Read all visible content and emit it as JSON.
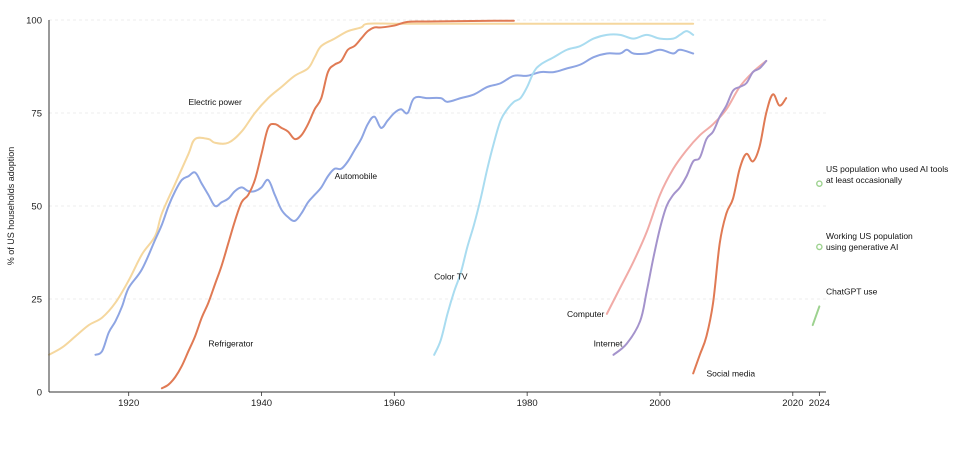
{
  "chart_data": {
    "type": "line",
    "ylabel": "% of US households adoption",
    "xlim": [
      1908,
      2025
    ],
    "ylim": [
      0,
      100
    ],
    "x_ticks": [
      {
        "value": 1920,
        "label": "1920"
      },
      {
        "value": 1940,
        "label": "1940"
      },
      {
        "value": 1960,
        "label": "1960"
      },
      {
        "value": 1980,
        "label": "1980"
      },
      {
        "value": 2000,
        "label": "2000"
      },
      {
        "value": 2020,
        "label": "2020"
      },
      {
        "value": 2024,
        "label": "2024"
      }
    ],
    "y_ticks": [
      {
        "value": 0,
        "label": "0"
      },
      {
        "value": 25,
        "label": "25"
      },
      {
        "value": 50,
        "label": "50"
      },
      {
        "value": 75,
        "label": "75"
      },
      {
        "value": 100,
        "label": "100"
      }
    ],
    "series": [
      {
        "name": "Electric power",
        "color": "#f5d79e",
        "label_at": [
          1929,
          78
        ],
        "points": [
          [
            1908,
            10
          ],
          [
            1910,
            12
          ],
          [
            1912,
            15
          ],
          [
            1914,
            18
          ],
          [
            1916,
            20
          ],
          [
            1918,
            24
          ],
          [
            1920,
            30
          ],
          [
            1922,
            37
          ],
          [
            1924,
            42
          ],
          [
            1925,
            48
          ],
          [
            1927,
            56
          ],
          [
            1929,
            64
          ],
          [
            1930,
            68
          ],
          [
            1932,
            68
          ],
          [
            1933,
            67
          ],
          [
            1935,
            67
          ],
          [
            1937,
            70
          ],
          [
            1939,
            75
          ],
          [
            1941,
            79
          ],
          [
            1943,
            82
          ],
          [
            1945,
            85
          ],
          [
            1947,
            87
          ],
          [
            1948,
            90
          ],
          [
            1949,
            93
          ],
          [
            1951,
            95
          ],
          [
            1953,
            97
          ],
          [
            1955,
            98
          ],
          [
            1956,
            99
          ],
          [
            1960,
            99
          ],
          [
            1970,
            99
          ],
          [
            1980,
            99
          ],
          [
            1990,
            99
          ],
          [
            2000,
            99
          ],
          [
            2005,
            99
          ]
        ]
      },
      {
        "name": "Automobile",
        "color": "#8ea5e3",
        "label_at": [
          1951,
          58
        ],
        "points": [
          [
            1915,
            10
          ],
          [
            1916,
            11
          ],
          [
            1917,
            16
          ],
          [
            1918,
            19
          ],
          [
            1919,
            23
          ],
          [
            1920,
            28
          ],
          [
            1922,
            33
          ],
          [
            1924,
            41
          ],
          [
            1925,
            45
          ],
          [
            1926,
            50
          ],
          [
            1927,
            54
          ],
          [
            1928,
            57
          ],
          [
            1929,
            58
          ],
          [
            1930,
            59
          ],
          [
            1931,
            56
          ],
          [
            1932,
            53
          ],
          [
            1933,
            50
          ],
          [
            1934,
            51
          ],
          [
            1935,
            52
          ],
          [
            1936,
            54
          ],
          [
            1937,
            55
          ],
          [
            1938,
            54
          ],
          [
            1939,
            54
          ],
          [
            1940,
            55
          ],
          [
            1941,
            57
          ],
          [
            1942,
            53
          ],
          [
            1943,
            49
          ],
          [
            1944,
            47
          ],
          [
            1945,
            46
          ],
          [
            1946,
            48
          ],
          [
            1947,
            51
          ],
          [
            1948,
            53
          ],
          [
            1949,
            55
          ],
          [
            1950,
            58
          ],
          [
            1951,
            60
          ],
          [
            1952,
            60
          ],
          [
            1953,
            62
          ],
          [
            1954,
            65
          ],
          [
            1955,
            68
          ],
          [
            1956,
            72
          ],
          [
            1957,
            74
          ],
          [
            1958,
            71
          ],
          [
            1959,
            73
          ],
          [
            1960,
            75
          ],
          [
            1961,
            76
          ],
          [
            1962,
            75
          ],
          [
            1963,
            79
          ],
          [
            1965,
            79
          ],
          [
            1967,
            79
          ],
          [
            1968,
            78
          ],
          [
            1970,
            79
          ],
          [
            1972,
            80
          ],
          [
            1974,
            82
          ],
          [
            1976,
            83
          ],
          [
            1978,
            85
          ],
          [
            1980,
            85
          ],
          [
            1982,
            86
          ],
          [
            1984,
            86
          ],
          [
            1986,
            87
          ],
          [
            1988,
            88
          ],
          [
            1990,
            90
          ],
          [
            1992,
            91
          ],
          [
            1994,
            91
          ],
          [
            1995,
            92
          ],
          [
            1996,
            91
          ],
          [
            1998,
            91
          ],
          [
            2000,
            92
          ],
          [
            2002,
            91
          ],
          [
            2003,
            92
          ],
          [
            2005,
            91
          ]
        ]
      },
      {
        "name": "Refrigerator",
        "color": "#e07a54",
        "label_at": [
          1932,
          13
        ],
        "points": [
          [
            1925,
            1
          ],
          [
            1926,
            2
          ],
          [
            1927,
            4
          ],
          [
            1928,
            7
          ],
          [
            1929,
            11
          ],
          [
            1930,
            15
          ],
          [
            1931,
            20
          ],
          [
            1932,
            24
          ],
          [
            1933,
            29
          ],
          [
            1934,
            34
          ],
          [
            1935,
            40
          ],
          [
            1936,
            46
          ],
          [
            1937,
            51
          ],
          [
            1938,
            53
          ],
          [
            1939,
            57
          ],
          [
            1940,
            64
          ],
          [
            1941,
            71
          ],
          [
            1942,
            72
          ],
          [
            1943,
            71
          ],
          [
            1944,
            70
          ],
          [
            1945,
            68
          ],
          [
            1946,
            69
          ],
          [
            1947,
            72
          ],
          [
            1948,
            76
          ],
          [
            1949,
            79
          ],
          [
            1950,
            86
          ],
          [
            1951,
            88
          ],
          [
            1952,
            89
          ],
          [
            1953,
            92
          ],
          [
            1954,
            93
          ],
          [
            1955,
            95
          ],
          [
            1956,
            97
          ],
          [
            1957,
            98
          ],
          [
            1958,
            98
          ],
          [
            1960,
            98.5
          ],
          [
            1962,
            99.5
          ],
          [
            1965,
            99.6
          ],
          [
            1970,
            99.7
          ],
          [
            1975,
            99.8
          ],
          [
            1978,
            99.8
          ]
        ]
      },
      {
        "name": "Color TV",
        "color": "#a9dcf0",
        "label_at": [
          1966,
          31
        ],
        "points": [
          [
            1966,
            10
          ],
          [
            1967,
            14
          ],
          [
            1968,
            21
          ],
          [
            1969,
            27
          ],
          [
            1970,
            32
          ],
          [
            1971,
            39
          ],
          [
            1972,
            45
          ],
          [
            1973,
            52
          ],
          [
            1974,
            60
          ],
          [
            1975,
            67
          ],
          [
            1976,
            73
          ],
          [
            1977,
            76
          ],
          [
            1978,
            78
          ],
          [
            1979,
            79
          ],
          [
            1980,
            82
          ],
          [
            1981,
            86
          ],
          [
            1982,
            88
          ],
          [
            1984,
            90
          ],
          [
            1986,
            92
          ],
          [
            1988,
            93
          ],
          [
            1990,
            95
          ],
          [
            1992,
            96
          ],
          [
            1994,
            96
          ],
          [
            1996,
            95
          ],
          [
            1998,
            96
          ],
          [
            2000,
            95
          ],
          [
            2002,
            95
          ],
          [
            2003,
            96
          ],
          [
            2004,
            97
          ],
          [
            2005,
            96
          ]
        ]
      },
      {
        "name": "Computer",
        "color": "#f1aba7",
        "label_at": [
          1986,
          21
        ],
        "points": [
          [
            1992,
            21
          ],
          [
            1994,
            28
          ],
          [
            1996,
            35
          ],
          [
            1998,
            43
          ],
          [
            2000,
            53
          ],
          [
            2002,
            60
          ],
          [
            2004,
            65
          ],
          [
            2006,
            69
          ],
          [
            2008,
            72
          ],
          [
            2010,
            76
          ],
          [
            2012,
            82
          ],
          [
            2014,
            86
          ],
          [
            2016,
            89
          ]
        ]
      },
      {
        "name": "Internet",
        "color": "#a493cc",
        "label_at": [
          1990,
          13
        ],
        "points": [
          [
            1993,
            10
          ],
          [
            1995,
            13
          ],
          [
            1997,
            19
          ],
          [
            1998,
            27
          ],
          [
            1999,
            36
          ],
          [
            2000,
            44
          ],
          [
            2001,
            50
          ],
          [
            2002,
            53
          ],
          [
            2003,
            55
          ],
          [
            2004,
            58
          ],
          [
            2005,
            62
          ],
          [
            2006,
            63
          ],
          [
            2007,
            68
          ],
          [
            2008,
            70
          ],
          [
            2009,
            74
          ],
          [
            2010,
            77
          ],
          [
            2011,
            81
          ],
          [
            2012,
            82
          ],
          [
            2013,
            83
          ],
          [
            2014,
            86
          ],
          [
            2015,
            87
          ],
          [
            2016,
            89
          ]
        ]
      },
      {
        "name": "Social media",
        "color": "#e07a54",
        "label_at": [
          2007,
          5
        ],
        "points": [
          [
            2005,
            5
          ],
          [
            2006,
            10
          ],
          [
            2007,
            15
          ],
          [
            2008,
            24
          ],
          [
            2009,
            40
          ],
          [
            2010,
            48
          ],
          [
            2011,
            52
          ],
          [
            2012,
            60
          ],
          [
            2013,
            64
          ],
          [
            2014,
            62
          ],
          [
            2015,
            66
          ],
          [
            2016,
            75
          ],
          [
            2017,
            80
          ],
          [
            2018,
            77
          ],
          [
            2019,
            79
          ]
        ]
      },
      {
        "name": "ChatGPT use",
        "color": "#9dd28f",
        "label_at": [
          2025,
          27
        ],
        "points": [
          [
            2023,
            18
          ],
          [
            2024,
            23
          ]
        ]
      }
    ],
    "point_markers": [
      {
        "name": "US population who used AI tools at least occasionally",
        "x": 2024,
        "y": 56,
        "color": "#9dd28f"
      },
      {
        "name": "Working US population using generative AI",
        "x": 2024,
        "y": 39,
        "color": "#9dd28f"
      }
    ],
    "annotations": [
      {
        "lines": [
          "US population who used AI tools",
          "at least occasionally"
        ],
        "x": 2025,
        "y": 60
      },
      {
        "lines": [
          "Working US population",
          "using generative AI"
        ],
        "x": 2025,
        "y": 42
      }
    ]
  }
}
